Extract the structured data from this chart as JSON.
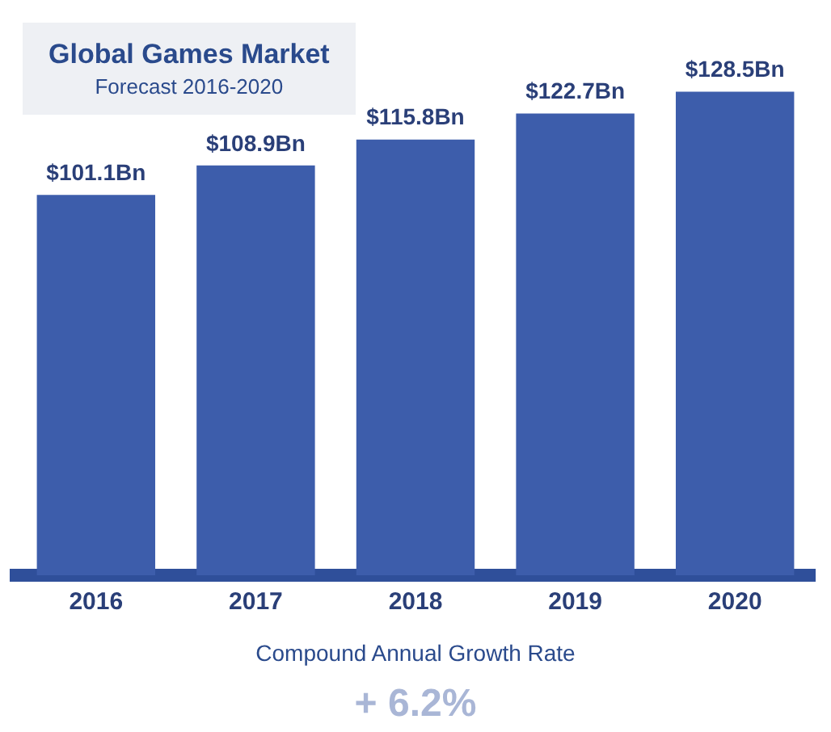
{
  "chart_data": {
    "type": "bar",
    "title": "Global Games Market",
    "subtitle": "Forecast 2016-2020",
    "categories": [
      "2016",
      "2017",
      "2018",
      "2019",
      "2020"
    ],
    "values": [
      101.1,
      108.9,
      115.8,
      122.7,
      128.5
    ],
    "value_labels": [
      "$101.1Bn",
      "$108.9Bn",
      "$115.8Bn",
      "$122.7Bn",
      "$128.5Bn"
    ],
    "color": "#3d5dab",
    "grid": false,
    "legend": false,
    "tick_labels": "x",
    "annotations": [
      "Compound Annual Growth Rate",
      "+ 6.2%"
    ]
  }
}
